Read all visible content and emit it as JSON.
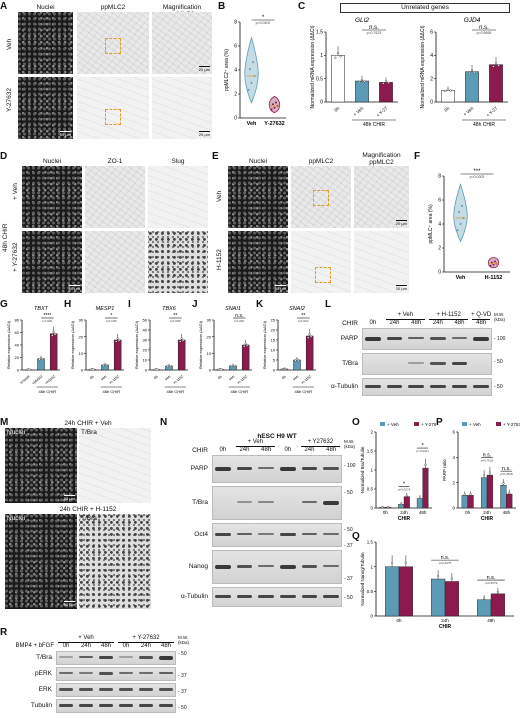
{
  "panels": {
    "A": {
      "letter": "A",
      "cols": [
        "Nuclei",
        "ppMLC2",
        "Magnification ppMLC2"
      ],
      "rows": [
        "Veh",
        "Y-27632"
      ],
      "scale": [
        "50 µm",
        "20 µm"
      ]
    },
    "B": {
      "letter": "B"
    },
    "C": {
      "letter": "C",
      "header": "Unrelated genes",
      "genes": [
        "GLI2",
        "GJD4"
      ]
    },
    "D": {
      "letter": "D",
      "cols": [
        "Nuclei",
        "ZO-1",
        "Slug"
      ],
      "rows": [
        "+ Veh",
        "+ Y-27632"
      ],
      "side": "48h CHIR",
      "scale": "50 µm"
    },
    "E": {
      "letter": "E",
      "cols": [
        "Nuclei",
        "ppMLC2",
        "Magnification ppMLC2"
      ],
      "rows": [
        "Veh",
        "H-1152"
      ],
      "scale": [
        "50 µm",
        "20 µm"
      ]
    },
    "F": {
      "letter": "F"
    },
    "G": {
      "letter": "G",
      "gene": "TBXT"
    },
    "H": {
      "letter": "H",
      "gene": "MESP1"
    },
    "I": {
      "letter": "I",
      "gene": "TBX6"
    },
    "J": {
      "letter": "J",
      "gene": "SNAI1"
    },
    "K": {
      "letter": "K",
      "gene": "SNAI2"
    },
    "L": {
      "letter": "L",
      "chir": "CHIR",
      "lanes": [
        "0h",
        "24h",
        "48h",
        "24h",
        "48h",
        "48h"
      ],
      "groups": [
        "+ Veh",
        "+ H-1152",
        "+ Q-VD"
      ],
      "proteins": [
        "PARP",
        "T/Bra",
        "α-Tubulin"
      ],
      "mw_title": "M.W. (kDa)",
      "mw": [
        "- 100",
        "- 50",
        "- 50"
      ]
    },
    "M": {
      "letter": "M",
      "top": "24h CHIR + Veh",
      "bottom": "24h CHIR + H-1152",
      "cols": [
        "Nuclei",
        "T/Bra"
      ],
      "scale": "50 µm"
    },
    "N": {
      "letter": "N",
      "title": "hESC H9 WT",
      "chir": "CHIR",
      "lanes": [
        "0h",
        "24h",
        "48h",
        "0h",
        "24h",
        "48h"
      ],
      "groups": [
        "+ Veh",
        "+ Y27632"
      ],
      "proteins": [
        "PARP",
        "T/Bra",
        "Oct4",
        "Nanog",
        "α-Tubulin"
      ],
      "mw_title": "M.W. (kDa)",
      "mw": [
        "- 100",
        "- 50",
        "- 50",
        "- 37",
        "- 37",
        "- 50"
      ]
    },
    "O": {
      "letter": "O"
    },
    "P": {
      "letter": "P"
    },
    "Q": {
      "letter": "Q"
    },
    "R": {
      "letter": "R",
      "treat": "BMP4 + bFGF",
      "lanes": [
        "0h",
        "24h",
        "48h",
        "0h",
        "24h",
        "48h"
      ],
      "groups": [
        "+ Veh",
        "+ Y-27632"
      ],
      "proteins": [
        "T/Bra",
        "pERK",
        "ERK",
        "Tubulin"
      ],
      "mw_title": "M.W. (kDa)",
      "mw": [
        "- 50",
        "- 37",
        "- 37",
        "- 50"
      ]
    }
  },
  "colors": {
    "veh": "#5b9bb5",
    "treat": "#8b1a4f",
    "roi": "#e09b2c"
  },
  "chart_data": [
    {
      "id": "B",
      "type": "violin",
      "categories": [
        "Veh",
        "Y-27632"
      ],
      "values": [
        3.5,
        1.0
      ],
      "ylabel": "ppMLC2⁺ area (%)",
      "ylim": [
        0,
        8
      ],
      "yticks": [
        0,
        2,
        4,
        6,
        8
      ],
      "annotations": [
        "*",
        "p=0.0402"
      ]
    },
    {
      "id": "C-GLI2",
      "type": "bar",
      "title": "GLI2",
      "categories": [
        "0h",
        "+ Veh",
        "+ Y-27"
      ],
      "values": [
        1.0,
        0.45,
        0.42
      ],
      "ylabel": "Normalized mRNA expression (ΔΔCt)",
      "ylim": [
        0,
        1.5
      ],
      "yticks": [
        0.0,
        0.5,
        1.0,
        1.5
      ],
      "xgroup": "48h CHIR",
      "annotations": [
        "n.s.",
        "p=0.7623"
      ]
    },
    {
      "id": "C-GJD4",
      "type": "bar",
      "title": "GJD4",
      "categories": [
        "0h",
        "+ Veh",
        "+ Y-27"
      ],
      "values": [
        1.0,
        2.6,
        3.2
      ],
      "ylabel": "Normalized mRNA expression (ΔΔCt)",
      "ylim": [
        0,
        6
      ],
      "yticks": [
        0,
        2,
        4,
        6
      ],
      "xgroup": "48h CHIR",
      "annotations": [
        "n.s.",
        "p=0.5665"
      ]
    },
    {
      "id": "F",
      "type": "violin",
      "categories": [
        "Veh",
        "H-1152"
      ],
      "values": [
        4.5,
        0.7
      ],
      "ylabel": "ppMLC⁺ area (%)",
      "ylim": [
        0,
        8
      ],
      "yticks": [
        0,
        2,
        4,
        6,
        8
      ],
      "annotations": [
        "***",
        "p=0.0002"
      ]
    },
    {
      "id": "G",
      "type": "bar",
      "title": "TBXT",
      "categories": [
        "mTeSR",
        "+DMSO",
        "+H1152"
      ],
      "values": [
        0.5,
        18,
        58
      ],
      "ylabel": "Relative expression (ΔΔCt)",
      "ylim": [
        0,
        80
      ],
      "yticks": [
        0,
        20,
        40,
        60,
        80
      ],
      "xgroup": "48h CHIR",
      "annotations": [
        "****",
        "p<0.0001"
      ]
    },
    {
      "id": "H",
      "type": "bar",
      "title": "MESP1",
      "categories": [
        "0h",
        "Veh",
        "H-1152"
      ],
      "values": [
        0.3,
        3,
        18
      ],
      "ylabel": "Relative expression (ΔΔCt)",
      "ylim": [
        0,
        30
      ],
      "yticks": [
        0,
        10,
        20,
        30
      ],
      "xgroup": "48h CHIR",
      "annotations": [
        "*",
        "p=0.0108"
      ]
    },
    {
      "id": "I",
      "type": "bar",
      "title": "TBX6",
      "categories": [
        "0h",
        "Veh",
        "H-1152"
      ],
      "values": [
        0.4,
        4,
        30
      ],
      "ylabel": "Relative expression (ΔΔCt)",
      "ylim": [
        0,
        50
      ],
      "yticks": [
        0,
        10,
        20,
        30,
        40,
        50
      ],
      "xgroup": "48h CHIR",
      "annotations": [
        "**",
        "p=0.0068"
      ]
    },
    {
      "id": "J",
      "type": "bar",
      "title": "SNAI1",
      "categories": [
        "0h",
        "Veh",
        "H-1152"
      ],
      "values": [
        0.3,
        2.5,
        15
      ],
      "ylabel": "Relative expression (ΔΔCt)",
      "ylim": [
        0,
        30
      ],
      "yticks": [
        0,
        10,
        20,
        30
      ],
      "xgroup": "48h CHIR",
      "annotations": [
        "n.s.",
        "p=0.2801"
      ]
    },
    {
      "id": "K",
      "type": "bar",
      "title": "SNAI2",
      "categories": [
        "0h",
        "Veh",
        "H-1152"
      ],
      "values": [
        0.5,
        5,
        17
      ],
      "ylabel": "Relative expression (ΔΔCt)",
      "ylim": [
        0,
        25
      ],
      "yticks": [
        0,
        5,
        10,
        15,
        20,
        25
      ],
      "xgroup": "48h CHIR",
      "annotations": [
        "**",
        "p=0.0010"
      ]
    },
    {
      "id": "O",
      "type": "bar",
      "categories": [
        "0h",
        "24h",
        "48h"
      ],
      "series": [
        {
          "name": "+ Veh",
          "values": [
            0.02,
            0.1,
            0.25
          ]
        },
        {
          "name": "+ Y-27632",
          "values": [
            0.02,
            0.3,
            1.05
          ]
        }
      ],
      "ylabel": "Normalized Bra/Tubulin",
      "ylim": [
        0,
        2.0
      ],
      "yticks": [
        0.0,
        0.5,
        1.0,
        1.5,
        2.0
      ],
      "xlabel": "CHIR",
      "annotations": [
        "*",
        "p=0.0274",
        "*",
        "p=0.0421"
      ]
    },
    {
      "id": "P",
      "type": "bar",
      "categories": [
        "0h",
        "24h",
        "48h"
      ],
      "series": [
        {
          "name": "+ Veh",
          "values": [
            1.0,
            2.4,
            1.8
          ]
        },
        {
          "name": "+ Y-27632",
          "values": [
            1.0,
            2.6,
            1.1
          ]
        }
      ],
      "ylabel": "PARP ratio",
      "ylim": [
        0,
        6
      ],
      "yticks": [
        0,
        2,
        4,
        6
      ],
      "xlabel": "CHIR",
      "annotations": [
        "n.s.",
        "p=0.7629",
        "n.s.",
        "p=0.2508"
      ]
    },
    {
      "id": "Q",
      "type": "bar",
      "categories": [
        "0h",
        "24h",
        "48h"
      ],
      "series": [
        {
          "name": "+ Veh",
          "values": [
            1.0,
            0.75,
            0.33
          ]
        },
        {
          "name": "+ Y-27632",
          "values": [
            1.0,
            0.7,
            0.45
          ]
        }
      ],
      "ylabel": "Normalized Nanog/Tubulin",
      "ylim": [
        0,
        1.5
      ],
      "yticks": [
        0.0,
        0.5,
        1.0,
        1.5
      ],
      "xlabel": "CHIR",
      "annotations": [
        "n.s.",
        "p=0.4075",
        "n.s.",
        "p=0.4679"
      ]
    }
  ]
}
